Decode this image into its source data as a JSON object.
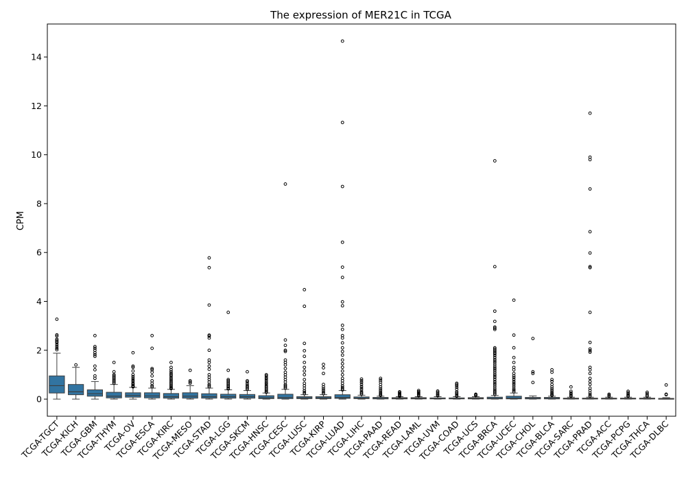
{
  "chart_data": {
    "type": "box",
    "title": "The expression of MER21C in TCGA",
    "xlabel": "",
    "ylabel": "CPM",
    "ylim": [
      -0.7,
      15.35
    ],
    "yticks": [
      0,
      2,
      4,
      6,
      8,
      10,
      12,
      14
    ],
    "grid": false,
    "legend": "none",
    "box_color": "#3274a1",
    "categories": [
      "TCGA-TGCT",
      "TCGA-KICH",
      "TCGA-GBM",
      "TCGA-THYM",
      "TCGA-OV",
      "TCGA-ESCA",
      "TCGA-KIRC",
      "TCGA-MESO",
      "TCGA-STAD",
      "TCGA-LGG",
      "TCGA-SKCM",
      "TCGA-HNSC",
      "TCGA-CESC",
      "TCGA-LUSC",
      "TCGA-KIRP",
      "TCGA-LUAD",
      "TCGA-LIHC",
      "TCGA-PAAD",
      "TCGA-READ",
      "TCGA-LAML",
      "TCGA-UVM",
      "TCGA-COAD",
      "TCGA-UCS",
      "TCGA-BRCA",
      "TCGA-UCEC",
      "TCGA-CHOL",
      "TCGA-BLCA",
      "TCGA-SARC",
      "TCGA-PRAD",
      "TCGA-ACC",
      "TCGA-PCPG",
      "TCGA-THCA",
      "TCGA-DLBC"
    ],
    "boxes": [
      {
        "min": 0.0,
        "q1": 0.25,
        "median": 0.55,
        "q3": 0.95,
        "max": 1.88,
        "outliers": [
          3.27,
          2.63,
          2.58,
          2.45,
          2.4,
          2.35,
          2.3,
          2.22,
          2.15,
          2.08,
          2.02
        ]
      },
      {
        "min": 0.0,
        "q1": 0.18,
        "median": 0.3,
        "q3": 0.6,
        "max": 1.3,
        "outliers": [
          1.4
        ]
      },
      {
        "min": 0.0,
        "q1": 0.12,
        "median": 0.22,
        "q3": 0.38,
        "max": 0.72,
        "outliers": [
          2.6,
          2.15,
          2.08,
          2.0,
          1.9,
          1.82,
          1.75,
          1.35,
          1.2,
          0.95,
          0.85
        ]
      },
      {
        "min": 0.0,
        "q1": 0.05,
        "median": 0.12,
        "q3": 0.28,
        "max": 0.6,
        "outliers": [
          1.5,
          1.12,
          1.0,
          0.95,
          0.9,
          0.85,
          0.8,
          0.75,
          0.7,
          0.65
        ]
      },
      {
        "min": 0.0,
        "q1": 0.08,
        "median": 0.15,
        "q3": 0.26,
        "max": 0.48,
        "outliers": [
          1.9,
          1.35,
          1.3,
          1.15,
          1.0,
          0.92,
          0.85,
          0.78,
          0.72,
          0.65,
          0.6,
          0.55,
          0.52,
          0.5
        ]
      },
      {
        "min": 0.0,
        "q1": 0.05,
        "median": 0.13,
        "q3": 0.26,
        "max": 0.45,
        "outliers": [
          2.6,
          2.08,
          1.25,
          1.2,
          1.1,
          0.95,
          0.75,
          0.65,
          0.55,
          0.5
        ]
      },
      {
        "min": 0.0,
        "q1": 0.04,
        "median": 0.1,
        "q3": 0.23,
        "max": 0.4,
        "outliers": [
          1.5,
          1.3,
          1.2,
          1.12,
          1.05,
          1.0,
          0.95,
          0.88,
          0.82,
          0.76,
          0.7,
          0.65,
          0.6,
          0.55,
          0.5,
          0.46,
          0.43
        ]
      },
      {
        "min": 0.0,
        "q1": 0.04,
        "median": 0.12,
        "q3": 0.26,
        "max": 0.55,
        "outliers": [
          1.18,
          0.75,
          0.7,
          0.65
        ]
      },
      {
        "min": 0.0,
        "q1": 0.04,
        "median": 0.1,
        "q3": 0.22,
        "max": 0.45,
        "outliers": [
          5.78,
          5.38,
          3.85,
          2.62,
          2.58,
          2.5,
          2.0,
          1.6,
          1.5,
          1.35,
          1.22,
          1.0,
          0.9,
          0.8,
          0.7,
          0.6,
          0.55,
          0.5
        ]
      },
      {
        "min": 0.0,
        "q1": 0.04,
        "median": 0.1,
        "q3": 0.2,
        "max": 0.38,
        "outliers": [
          3.55,
          1.18,
          0.8,
          0.75,
          0.7,
          0.65,
          0.6,
          0.55,
          0.5,
          0.45,
          0.42
        ]
      },
      {
        "min": 0.0,
        "q1": 0.04,
        "median": 0.1,
        "q3": 0.19,
        "max": 0.35,
        "outliers": [
          1.12,
          0.75,
          0.7,
          0.62,
          0.55,
          0.5,
          0.45,
          0.4
        ]
      },
      {
        "min": 0.0,
        "q1": 0.02,
        "median": 0.06,
        "q3": 0.14,
        "max": 0.25,
        "outliers": [
          1.0,
          0.95,
          0.88,
          0.82,
          0.75,
          0.68,
          0.62,
          0.55,
          0.5,
          0.45,
          0.4,
          0.35,
          0.3,
          0.28
        ]
      },
      {
        "min": 0.0,
        "q1": 0.02,
        "median": 0.07,
        "q3": 0.2,
        "max": 0.4,
        "outliers": [
          8.8,
          2.42,
          2.2,
          2.0,
          1.95,
          1.6,
          1.5,
          1.4,
          1.25,
          1.1,
          1.0,
          0.9,
          0.8,
          0.7,
          0.6,
          0.55,
          0.5,
          0.45
        ]
      },
      {
        "min": 0.0,
        "q1": 0.02,
        "median": 0.05,
        "q3": 0.1,
        "max": 0.18,
        "outliers": [
          4.48,
          3.8,
          2.28,
          1.98,
          1.75,
          1.5,
          1.3,
          1.15,
          1.0,
          0.8,
          0.65,
          0.55,
          0.45,
          0.35,
          0.28,
          0.22
        ]
      },
      {
        "min": 0.0,
        "q1": 0.02,
        "median": 0.05,
        "q3": 0.1,
        "max": 0.18,
        "outliers": [
          1.42,
          1.28,
          1.05,
          0.6,
          0.5,
          0.42,
          0.35,
          0.28,
          0.22
        ]
      },
      {
        "min": 0.0,
        "q1": 0.03,
        "median": 0.07,
        "q3": 0.18,
        "max": 0.35,
        "outliers": [
          14.65,
          11.32,
          8.7,
          6.42,
          5.4,
          4.98,
          3.98,
          3.82,
          3.02,
          2.85,
          2.6,
          2.5,
          2.3,
          2.1,
          1.95,
          1.8,
          1.6,
          1.45,
          1.3,
          1.15,
          1.0,
          0.85,
          0.75,
          0.65,
          0.55,
          0.48,
          0.42,
          0.38
        ]
      },
      {
        "min": 0.0,
        "q1": 0.02,
        "median": 0.04,
        "q3": 0.09,
        "max": 0.16,
        "outliers": [
          0.82,
          0.75,
          0.68,
          0.6,
          0.52,
          0.45,
          0.38,
          0.3,
          0.25,
          0.2
        ]
      },
      {
        "min": 0.0,
        "q1": 0.01,
        "median": 0.03,
        "q3": 0.07,
        "max": 0.12,
        "outliers": [
          0.85,
          0.78,
          0.7,
          0.6,
          0.5,
          0.42,
          0.35,
          0.28,
          0.22,
          0.18,
          0.15
        ]
      },
      {
        "min": 0.0,
        "q1": 0.01,
        "median": 0.03,
        "q3": 0.06,
        "max": 0.1,
        "outliers": [
          0.3,
          0.26,
          0.22,
          0.18,
          0.15,
          0.12
        ]
      },
      {
        "min": 0.0,
        "q1": 0.01,
        "median": 0.03,
        "q3": 0.06,
        "max": 0.1,
        "outliers": [
          0.35,
          0.3,
          0.26,
          0.22,
          0.18,
          0.14
        ]
      },
      {
        "min": 0.0,
        "q1": 0.01,
        "median": 0.02,
        "q3": 0.05,
        "max": 0.1,
        "outliers": [
          0.33,
          0.28,
          0.22,
          0.18,
          0.14
        ]
      },
      {
        "min": 0.0,
        "q1": 0.01,
        "median": 0.02,
        "q3": 0.05,
        "max": 0.1,
        "outliers": [
          0.65,
          0.6,
          0.55,
          0.48,
          0.4,
          0.3,
          0.25,
          0.2,
          0.15,
          0.12
        ]
      },
      {
        "min": 0.0,
        "q1": 0.01,
        "median": 0.03,
        "q3": 0.06,
        "max": 0.1,
        "outliers": [
          0.2,
          0.17,
          0.15
        ]
      },
      {
        "min": 0.0,
        "q1": 0.01,
        "median": 0.03,
        "q3": 0.08,
        "max": 0.15,
        "outliers": [
          9.75,
          5.42,
          3.6,
          3.18,
          2.95,
          2.9,
          2.85,
          2.1,
          2.05,
          2.0,
          1.95,
          1.9,
          1.85,
          1.78,
          1.7,
          1.62,
          1.55,
          1.48,
          1.4,
          1.32,
          1.25,
          1.18,
          1.1,
          1.02,
          0.95,
          0.88,
          0.8,
          0.72,
          0.65,
          0.58,
          0.5,
          0.42,
          0.35,
          0.3,
          0.25,
          0.2
        ]
      },
      {
        "min": 0.0,
        "q1": 0.01,
        "median": 0.04,
        "q3": 0.12,
        "max": 0.25,
        "outliers": [
          4.05,
          2.62,
          2.1,
          1.7,
          1.5,
          1.3,
          1.2,
          1.05,
          0.95,
          0.88,
          0.8,
          0.72,
          0.65,
          0.58,
          0.5,
          0.42,
          0.36,
          0.3
        ]
      },
      {
        "min": 0.0,
        "q1": 0.01,
        "median": 0.03,
        "q3": 0.07,
        "max": 0.13,
        "outliers": [
          2.48,
          1.12,
          1.05,
          0.68
        ]
      },
      {
        "min": 0.0,
        "q1": 0.01,
        "median": 0.03,
        "q3": 0.07,
        "max": 0.12,
        "outliers": [
          1.2,
          1.1,
          0.8,
          0.72,
          0.6,
          0.5,
          0.42,
          0.35,
          0.28,
          0.22,
          0.18,
          0.15
        ]
      },
      {
        "min": 0.0,
        "q1": 0.005,
        "median": 0.02,
        "q3": 0.04,
        "max": 0.08,
        "outliers": [
          0.5,
          0.32,
          0.25,
          0.2,
          0.15,
          0.12
        ]
      },
      {
        "min": 0.0,
        "q1": 0.005,
        "median": 0.02,
        "q3": 0.04,
        "max": 0.08,
        "outliers": [
          11.7,
          9.9,
          9.8,
          8.6,
          6.85,
          5.98,
          5.42,
          5.38,
          3.55,
          2.32,
          2.05,
          1.98,
          1.92,
          1.3,
          1.2,
          1.05,
          0.85,
          0.72,
          0.6,
          0.45,
          0.35,
          0.25,
          0.18,
          0.12
        ]
      },
      {
        "min": 0.0,
        "q1": 0.005,
        "median": 0.02,
        "q3": 0.04,
        "max": 0.08,
        "outliers": [
          0.2,
          0.16,
          0.12
        ]
      },
      {
        "min": 0.0,
        "q1": 0.005,
        "median": 0.02,
        "q3": 0.04,
        "max": 0.08,
        "outliers": [
          0.32,
          0.26,
          0.2,
          0.15,
          0.12
        ]
      },
      {
        "min": 0.0,
        "q1": 0.005,
        "median": 0.02,
        "q3": 0.04,
        "max": 0.08,
        "outliers": [
          0.28,
          0.22,
          0.16,
          0.12
        ]
      },
      {
        "min": 0.0,
        "q1": 0.005,
        "median": 0.01,
        "q3": 0.03,
        "max": 0.06,
        "outliers": [
          0.58,
          0.2,
          0.18
        ]
      }
    ]
  }
}
